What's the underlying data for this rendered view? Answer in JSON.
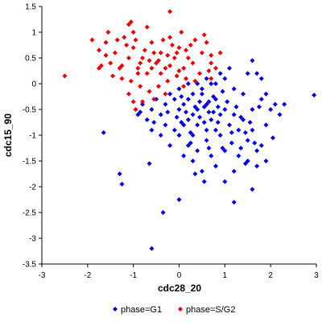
{
  "chart_data": {
    "type": "scatter",
    "xlabel": "cdc28_20",
    "ylabel": "cdc15_90",
    "xlim": [
      -3,
      3
    ],
    "ylim": [
      -3.5,
      1.5
    ],
    "x_ticks": [
      -3,
      -2,
      -1,
      0,
      1,
      2,
      3
    ],
    "y_ticks": [
      -3.5,
      -3,
      -2.5,
      -2,
      -1.5,
      -1,
      -0.5,
      0,
      0.5,
      1,
      1.5
    ],
    "x_tick_labels": [
      "-3",
      "-2",
      "-1",
      "0",
      "1",
      "2",
      "3"
    ],
    "y_tick_labels": [
      "-3.5",
      "-3",
      "-2.5",
      "-2",
      "-1.5",
      "-1",
      "-0.5",
      "0",
      "0.5",
      "1",
      "1.5"
    ],
    "grid": false,
    "legend_position": "bottom",
    "series": [
      {
        "name": "phase=G1",
        "color": "#0000ee",
        "marker": "diamond",
        "points": [
          [
            0.2,
            -0.3
          ],
          [
            0.4,
            -0.5
          ],
          [
            0.6,
            -0.4
          ],
          [
            0.3,
            -0.6
          ],
          [
            0.5,
            -0.2
          ],
          [
            0.7,
            -0.7
          ],
          [
            0.8,
            -0.3
          ],
          [
            0.1,
            -0.4
          ],
          [
            0.9,
            -0.6
          ],
          [
            1.0,
            -0.5
          ],
          [
            0.6,
            -0.9
          ],
          [
            0.4,
            -0.8
          ],
          [
            0.2,
            -0.7
          ],
          [
            0.8,
            -0.9
          ],
          [
            1.1,
            -0.8
          ],
          [
            1.2,
            -0.6
          ],
          [
            0.3,
            -0.2
          ],
          [
            0.5,
            -0.1
          ],
          [
            0.7,
            0.0
          ],
          [
            0.0,
            -0.5
          ],
          [
            -0.1,
            -0.3
          ],
          [
            0.1,
            -0.8
          ],
          [
            0.3,
            -1.0
          ],
          [
            0.6,
            -1.1
          ],
          [
            0.9,
            -1.0
          ],
          [
            1.3,
            -0.9
          ],
          [
            1.4,
            -0.7
          ],
          [
            1.5,
            -1.1
          ],
          [
            1.6,
            -0.9
          ],
          [
            1.7,
            -1.3
          ],
          [
            1.8,
            -1.2
          ],
          [
            1.9,
            -0.8
          ],
          [
            2.0,
            -0.5
          ],
          [
            2.1,
            -0.4
          ],
          [
            1.8,
            -0.3
          ],
          [
            1.6,
            -0.5
          ],
          [
            1.4,
            -0.2
          ],
          [
            1.2,
            -0.1
          ],
          [
            1.0,
            0.1
          ],
          [
            0.8,
            0.0
          ],
          [
            0.6,
            0.1
          ],
          [
            0.4,
            0.0
          ],
          [
            0.2,
            0.0
          ],
          [
            0.0,
            -0.1
          ],
          [
            -0.2,
            -0.2
          ],
          [
            -0.3,
            -0.4
          ],
          [
            -0.4,
            -0.6
          ],
          [
            -0.5,
            -0.3
          ],
          [
            -0.6,
            -0.5
          ],
          [
            -0.7,
            -0.7
          ],
          [
            -0.8,
            -0.4
          ],
          [
            -0.9,
            -0.6
          ],
          [
            -0.3,
            -0.8
          ],
          [
            -0.1,
            -0.9
          ],
          [
            0.0,
            -1.0
          ],
          [
            0.2,
            -1.2
          ],
          [
            0.4,
            -1.3
          ],
          [
            0.7,
            -1.4
          ],
          [
            1.0,
            -1.3
          ],
          [
            1.3,
            -1.4
          ],
          [
            1.5,
            -1.5
          ],
          [
            1.7,
            -1.6
          ],
          [
            1.9,
            -1.5
          ],
          [
            1.2,
            -1.7
          ],
          [
            1.0,
            -1.9
          ],
          [
            0.8,
            -1.6
          ],
          [
            0.5,
            -1.7
          ],
          [
            0.3,
            -1.5
          ],
          [
            0.1,
            -1.4
          ],
          [
            -0.2,
            -1.2
          ],
          [
            -0.4,
            -1.0
          ],
          [
            -0.6,
            -0.9
          ],
          [
            1.6,
            0.45
          ],
          [
            1.7,
            0.2
          ],
          [
            1.8,
            0.1
          ],
          [
            1.9,
            -0.2
          ],
          [
            2.2,
            -0.6
          ],
          [
            2.3,
            -0.4
          ],
          [
            2.95,
            -0.22
          ],
          [
            1.5,
            0.2
          ],
          [
            1.1,
            0.3
          ],
          [
            0.9,
            0.2
          ],
          [
            -1.65,
            -0.95
          ],
          [
            -1.3,
            -1.75
          ],
          [
            -1.25,
            -1.95
          ],
          [
            -0.65,
            -1.55
          ],
          [
            -0.35,
            -2.5
          ],
          [
            -0.6,
            -3.2
          ],
          [
            0.0,
            -2.25
          ],
          [
            1.2,
            -2.3
          ],
          [
            1.6,
            -2.05
          ],
          [
            1.45,
            -1.55
          ],
          [
            0.55,
            -1.9
          ],
          [
            0.35,
            -1.75
          ],
          [
            0.15,
            -0.55
          ],
          [
            0.45,
            -0.35
          ],
          [
            0.65,
            -0.55
          ],
          [
            0.85,
            -0.45
          ],
          [
            1.05,
            -0.35
          ],
          [
            1.25,
            -0.45
          ],
          [
            1.35,
            -0.65
          ],
          [
            0.25,
            -0.95
          ],
          [
            0.55,
            -0.75
          ],
          [
            0.75,
            -0.25
          ],
          [
            0.95,
            -0.15
          ],
          [
            1.15,
            -0.95
          ],
          [
            0.05,
            -0.25
          ],
          [
            -0.05,
            -0.65
          ],
          [
            0.35,
            -0.45
          ],
          [
            0.55,
            -0.45
          ],
          [
            0.65,
            -0.35
          ],
          [
            0.45,
            -0.65
          ],
          [
            0.75,
            -0.55
          ],
          [
            0.85,
            -0.75
          ],
          [
            1.45,
            -0.95
          ],
          [
            1.65,
            -1.15
          ],
          [
            2.05,
            -1.05
          ],
          [
            1.75,
            -0.45
          ],
          [
            -0.85,
            -0.55
          ],
          [
            -0.55,
            -0.75
          ],
          [
            -0.25,
            -0.55
          ],
          [
            0.05,
            -0.75
          ],
          [
            0.25,
            -1.15
          ],
          [
            0.65,
            -1.25
          ],
          [
            0.95,
            -1.25
          ],
          [
            1.15,
            -1.15
          ],
          [
            1.35,
            -1.25
          ],
          [
            1.55,
            -0.75
          ]
        ]
      },
      {
        "name": "phase=S/G2",
        "color": "#ee0000",
        "marker": "diamond",
        "points": [
          [
            -1.6,
            0.8
          ],
          [
            -1.4,
            0.6
          ],
          [
            -1.2,
            0.9
          ],
          [
            -1.0,
            0.7
          ],
          [
            -0.8,
            0.5
          ],
          [
            -0.6,
            0.8
          ],
          [
            -0.4,
            0.6
          ],
          [
            -0.2,
            0.9
          ],
          [
            0.0,
            0.7
          ],
          [
            0.2,
            0.5
          ],
          [
            -1.5,
            0.4
          ],
          [
            -1.3,
            0.3
          ],
          [
            -1.1,
            0.5
          ],
          [
            -0.9,
            0.3
          ],
          [
            -0.7,
            0.2
          ],
          [
            -0.5,
            0.4
          ],
          [
            -0.3,
            0.3
          ],
          [
            -0.1,
            0.5
          ],
          [
            0.1,
            0.3
          ],
          [
            0.3,
            0.4
          ],
          [
            0.5,
            0.6
          ],
          [
            -1.7,
            0.35
          ],
          [
            -1.45,
            0.15
          ],
          [
            -1.25,
            0.1
          ],
          [
            -1.05,
            0.05
          ],
          [
            -0.85,
            -0.05
          ],
          [
            -0.65,
            -0.15
          ],
          [
            -0.45,
            -0.05
          ],
          [
            -0.25,
            0.05
          ],
          [
            -0.05,
            0.15
          ],
          [
            0.15,
            0.1
          ],
          [
            0.35,
            0.05
          ],
          [
            -2.5,
            0.15
          ],
          [
            -1.9,
            0.85
          ],
          [
            -1.75,
            0.65
          ],
          [
            -1.55,
            1.0
          ],
          [
            -1.0,
            1.0
          ],
          [
            -1.05,
            1.2
          ],
          [
            -1.1,
            1.15
          ],
          [
            -0.7,
            1.1
          ],
          [
            -0.2,
            1.4
          ],
          [
            0.05,
            1.0
          ],
          [
            0.35,
            0.85
          ],
          [
            0.6,
            0.8
          ],
          [
            0.7,
            0.4
          ],
          [
            0.8,
            0.3
          ],
          [
            0.7,
            0.1
          ],
          [
            0.45,
            0.2
          ],
          [
            0.65,
            0.25
          ],
          [
            0.7,
            0.55
          ],
          [
            0.9,
            0.6
          ],
          [
            0.55,
            0.95
          ],
          [
            0.25,
            0.75
          ],
          [
            -0.15,
            0.75
          ],
          [
            -0.35,
            0.85
          ],
          [
            -0.55,
            0.6
          ],
          [
            -0.75,
            0.65
          ],
          [
            -0.95,
            0.85
          ],
          [
            -1.15,
            0.75
          ],
          [
            -1.35,
            0.85
          ],
          [
            -1.6,
            0.55
          ],
          [
            -0.9,
            0.2
          ],
          [
            -0.6,
            0.3
          ],
          [
            -0.4,
            0.2
          ],
          [
            -0.2,
            0.35
          ],
          [
            0.0,
            0.25
          ],
          [
            -1.0,
            -0.35
          ],
          [
            -1.1,
            -0.2
          ],
          [
            -0.95,
            -0.5
          ],
          [
            -0.8,
            -0.35
          ],
          [
            -0.55,
            -0.3
          ],
          [
            -0.3,
            -0.2
          ],
          [
            0.1,
            -0.05
          ],
          [
            -0.45,
            0.45
          ],
          [
            -0.25,
            0.55
          ],
          [
            -0.05,
            0.6
          ],
          [
            0.15,
            0.65
          ],
          [
            -0.65,
            0.45
          ],
          [
            -0.85,
            0.4
          ],
          [
            -1.25,
            0.35
          ],
          [
            -1.75,
            0.3
          ]
        ]
      }
    ]
  }
}
